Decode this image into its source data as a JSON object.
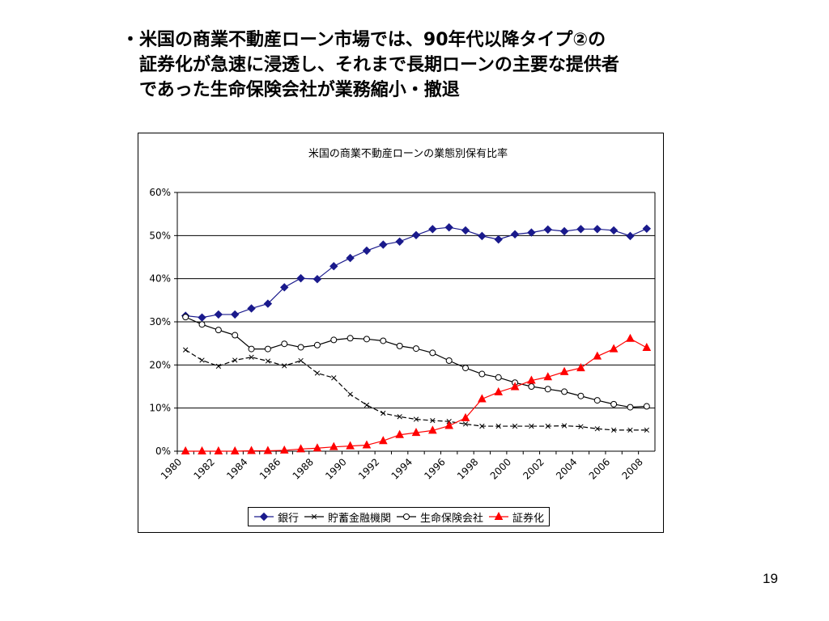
{
  "slide": {
    "heading_lines": [
      "・米国の商業不動産ローン市場では、90年代以降タイプ②の",
      "証券化が急速に浸透し、それまで長期ローンの主要な提供者",
      "であった生命保険会社が業務縮小・撤退"
    ],
    "page_number": "19"
  },
  "chart_data": {
    "type": "line",
    "title": "米国の商業不動産ローンの業態別保有比率",
    "xlabel": "",
    "ylabel": "",
    "ylim": [
      0,
      0.6
    ],
    "y_ticks": [
      "0%",
      "10%",
      "20%",
      "30%",
      "40%",
      "50%",
      "60%"
    ],
    "x_tick_labels": [
      "1980",
      "1982",
      "1984",
      "1986",
      "1988",
      "1990",
      "1992",
      "1994",
      "1996",
      "1998",
      "2000",
      "2002",
      "2004",
      "2006",
      "2008"
    ],
    "x": [
      1980,
      1981,
      1982,
      1983,
      1984,
      1985,
      1986,
      1987,
      1988,
      1989,
      1990,
      1991,
      1992,
      1993,
      1994,
      1995,
      1996,
      1997,
      1998,
      1999,
      2000,
      2001,
      2002,
      2003,
      2004,
      2005,
      2006,
      2007,
      2008
    ],
    "grid": "horizontal",
    "legend_position": "bottom",
    "series": [
      {
        "name": "銀行",
        "color": "#1a1a8c",
        "marker": "diamond",
        "values": [
          0.314,
          0.31,
          0.317,
          0.317,
          0.331,
          0.342,
          0.38,
          0.401,
          0.399,
          0.429,
          0.448,
          0.465,
          0.479,
          0.486,
          0.501,
          0.515,
          0.519,
          0.512,
          0.499,
          0.491,
          0.503,
          0.507,
          0.514,
          0.51,
          0.515,
          0.515,
          0.512,
          0.499,
          0.516
        ]
      },
      {
        "name": "貯蓄金融機関",
        "color": "#000000",
        "marker": "x",
        "values": [
          0.235,
          0.211,
          0.197,
          0.211,
          0.218,
          0.209,
          0.198,
          0.21,
          0.181,
          0.17,
          0.132,
          0.107,
          0.088,
          0.08,
          0.074,
          0.071,
          0.069,
          0.063,
          0.058,
          0.058,
          0.058,
          0.058,
          0.058,
          0.059,
          0.057,
          0.052,
          0.049,
          0.049,
          0.049
        ]
      },
      {
        "name": "生命保険会社",
        "color": "#000000",
        "marker": "circle",
        "values": [
          0.311,
          0.294,
          0.281,
          0.269,
          0.237,
          0.237,
          0.249,
          0.241,
          0.246,
          0.258,
          0.262,
          0.26,
          0.256,
          0.244,
          0.238,
          0.228,
          0.21,
          0.193,
          0.179,
          0.171,
          0.159,
          0.15,
          0.144,
          0.138,
          0.128,
          0.118,
          0.109,
          0.102,
          0.104
        ]
      },
      {
        "name": "証券化",
        "color": "#ff0000",
        "marker": "triangle",
        "values": [
          0.0,
          0.0,
          0.0,
          0.0,
          0.001,
          0.001,
          0.002,
          0.005,
          0.007,
          0.01,
          0.012,
          0.014,
          0.024,
          0.038,
          0.043,
          0.048,
          0.059,
          0.077,
          0.121,
          0.137,
          0.149,
          0.164,
          0.172,
          0.184,
          0.193,
          0.22,
          0.237,
          0.261,
          0.24
        ]
      }
    ]
  }
}
